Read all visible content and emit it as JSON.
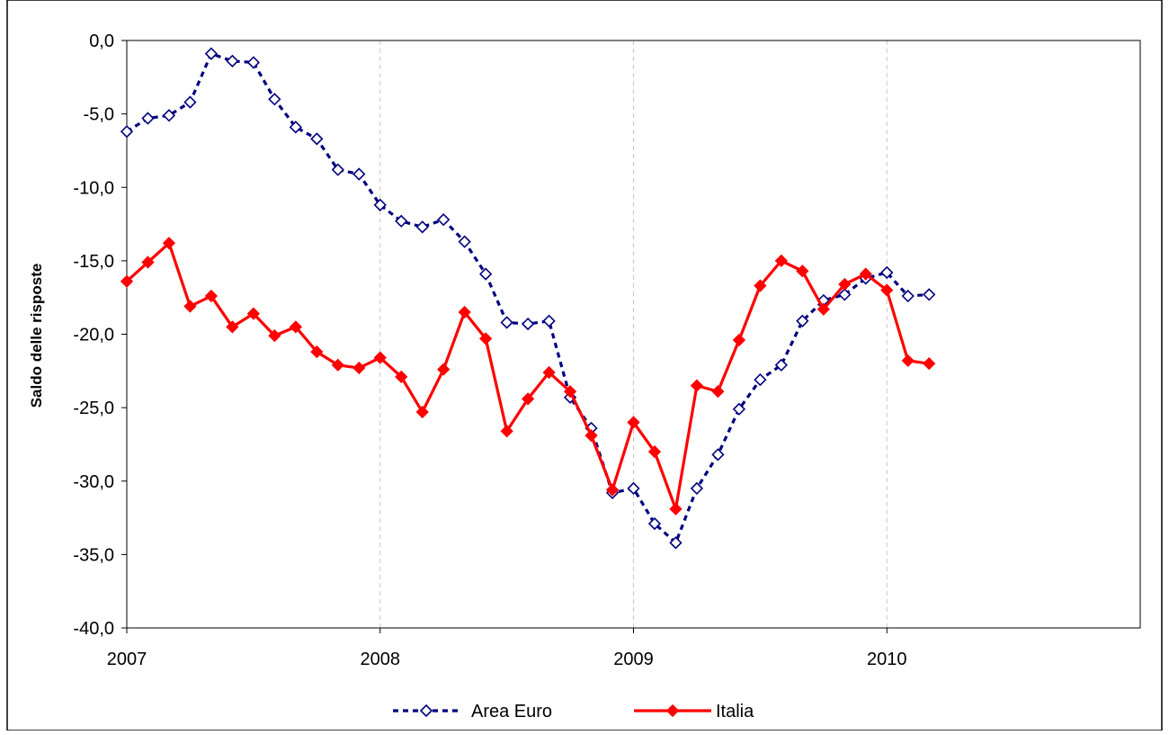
{
  "chart_data": {
    "type": "line",
    "title": "",
    "xlabel": "",
    "ylabel": "Saldo delle risposte",
    "xlim": [
      2007,
      2011
    ],
    "ylim": [
      -40,
      0
    ],
    "x_ticks": [
      "2007",
      "2008",
      "2009",
      "2010"
    ],
    "y_ticks": [
      "0,0",
      "-5,0",
      "-10,0",
      "-15,0",
      "-20,0",
      "-25,0",
      "-30,0",
      "-35,0",
      "-40,0"
    ],
    "grid": "vertical dashed at year boundaries",
    "legend_position": "bottom",
    "x": [
      2007.0,
      2007.0833,
      2007.1667,
      2007.25,
      2007.3333,
      2007.4167,
      2007.5,
      2007.5833,
      2007.6667,
      2007.75,
      2007.8333,
      2007.9167,
      2008.0,
      2008.0833,
      2008.1667,
      2008.25,
      2008.3333,
      2008.4167,
      2008.5,
      2008.5833,
      2008.6667,
      2008.75,
      2008.8333,
      2008.9167,
      2009.0,
      2009.0833,
      2009.1667,
      2009.25,
      2009.3333,
      2009.4167,
      2009.5,
      2009.5833,
      2009.6667,
      2009.75,
      2009.8333,
      2009.9167,
      2010.0,
      2010.0833,
      2010.1667
    ],
    "series": [
      {
        "name": "Area Euro",
        "color": "#000080",
        "style": "dashed line, hollow diamond markers",
        "values": [
          -6.2,
          -5.3,
          -5.1,
          -4.2,
          -0.9,
          -1.4,
          -1.5,
          -4.0,
          -5.9,
          -6.7,
          -8.8,
          -9.1,
          -11.2,
          -12.3,
          -12.7,
          -12.2,
          -13.7,
          -15.9,
          -19.2,
          -19.3,
          -19.1,
          -24.3,
          -26.4,
          -30.8,
          -30.5,
          -32.9,
          -34.2,
          -30.5,
          -28.2,
          -25.1,
          -23.1,
          -22.1,
          -19.1,
          -17.7,
          -17.3,
          -16.2,
          -15.8,
          -17.4,
          -17.3
        ]
      },
      {
        "name": "Italia",
        "color": "#ff0000",
        "style": "solid line, filled diamond markers",
        "values": [
          -16.4,
          -15.1,
          -13.8,
          -18.1,
          -17.4,
          -19.5,
          -18.6,
          -20.1,
          -19.5,
          -21.2,
          -22.1,
          -22.3,
          -21.6,
          -22.9,
          -25.3,
          -22.4,
          -18.5,
          -20.3,
          -26.6,
          -24.4,
          -22.6,
          -23.9,
          -26.9,
          -30.6,
          -26.0,
          -28.0,
          -31.9,
          -23.5,
          -23.9,
          -20.4,
          -16.7,
          -15.0,
          -15.7,
          -18.3,
          -16.6,
          -15.9,
          -17.0,
          -21.8,
          -22.0
        ]
      }
    ]
  }
}
